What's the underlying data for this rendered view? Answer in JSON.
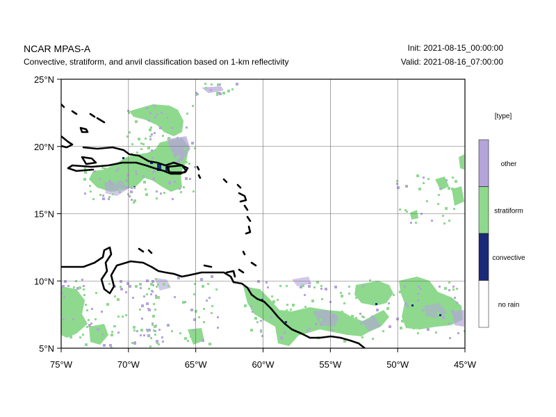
{
  "header": {
    "title": "NCAR MPAS-A",
    "subtitle": "Convective, stratiform, and anvil classification based on 1-km reflectivity",
    "init": "Init: 2021-08-15_00:00:00",
    "valid": "Valid: 2021-08-16_07:00:00"
  },
  "map": {
    "lon_range": [
      -75,
      -45
    ],
    "lat_range": [
      5,
      25
    ],
    "x_ticks": [
      {
        "value": -75,
        "label": "75°W"
      },
      {
        "value": -70,
        "label": "70°W"
      },
      {
        "value": -65,
        "label": "65°W"
      },
      {
        "value": -60,
        "label": "60°W"
      },
      {
        "value": -55,
        "label": "55°W"
      },
      {
        "value": -50,
        "label": "50°W"
      },
      {
        "value": -45,
        "label": "45°W"
      }
    ],
    "y_ticks": [
      {
        "value": 5,
        "label": "5°N"
      },
      {
        "value": 10,
        "label": "10°N"
      },
      {
        "value": 15,
        "label": "15°N"
      },
      {
        "value": 20,
        "label": "20°N"
      },
      {
        "value": 25,
        "label": "25°N"
      }
    ],
    "gridlines": true
  },
  "legend": {
    "title": "[type]",
    "categories": [
      {
        "label": "other",
        "color": "#b4a4da"
      },
      {
        "label": "stratiform",
        "color": "#8ed98e"
      },
      {
        "label": "convective",
        "color": "#1a2a7a"
      },
      {
        "label": "no rain",
        "color": "#ffffff"
      }
    ]
  },
  "colors": {
    "coastline": "#000000",
    "gridline": "#666666"
  }
}
